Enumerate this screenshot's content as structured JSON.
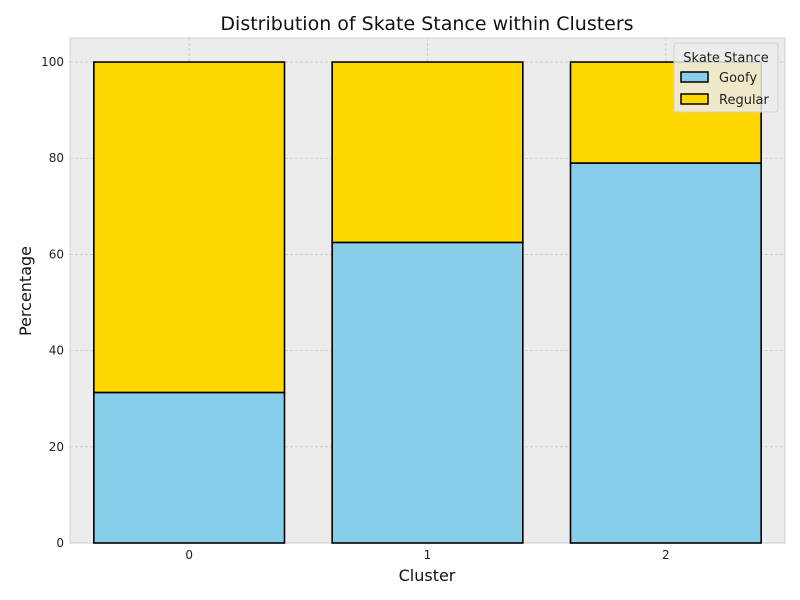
{
  "chart_data": {
    "type": "bar",
    "stacked": true,
    "title": "Distribution of Skate Stance within Clusters",
    "xlabel": "Cluster",
    "ylabel": "Percentage",
    "categories": [
      "0",
      "1",
      "2"
    ],
    "series": [
      {
        "name": "Goofy",
        "values": [
          31.3,
          62.5,
          79.0
        ],
        "color": "#87ceeb"
      },
      {
        "name": "Regular",
        "values": [
          68.7,
          37.5,
          21.0
        ],
        "color": "#ffd700"
      }
    ],
    "ylim": [
      0,
      105
    ],
    "yticks": [
      0,
      20,
      40,
      60,
      80,
      100
    ],
    "grid": true,
    "legend": {
      "title": "Skate Stance",
      "placement": "top-right"
    },
    "colors": {
      "plot_background": "#ececec",
      "bar_edge": "#000000",
      "grid": "#c8c8c8"
    }
  }
}
